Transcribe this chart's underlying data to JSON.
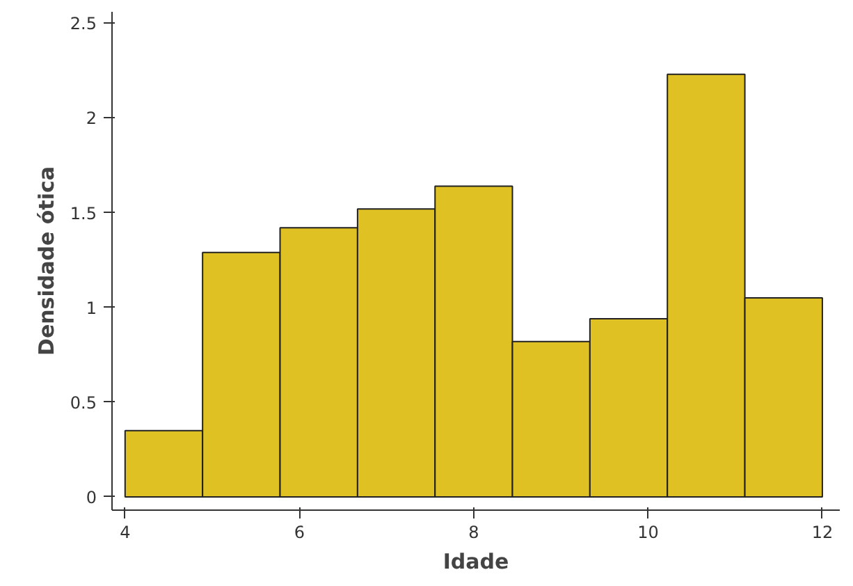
{
  "chart_data": {
    "type": "histogram",
    "xlabel": "Idade",
    "ylabel": "Densidade ótica",
    "bins": [
      4,
      4.889,
      5.778,
      6.667,
      7.556,
      8.444,
      9.333,
      10.222,
      11.111,
      12
    ],
    "values": [
      0.35,
      1.29,
      1.42,
      1.52,
      1.64,
      0.82,
      0.94,
      2.23,
      1.05
    ],
    "color": "#dfc123",
    "xlim": [
      3.85,
      12.2
    ],
    "xticks": [
      4,
      6,
      8,
      10,
      12
    ],
    "ylim": [
      -0.07,
      2.56
    ],
    "yticks": [
      0,
      0.5,
      1,
      1.5,
      2,
      2.5
    ],
    "grid": false
  }
}
